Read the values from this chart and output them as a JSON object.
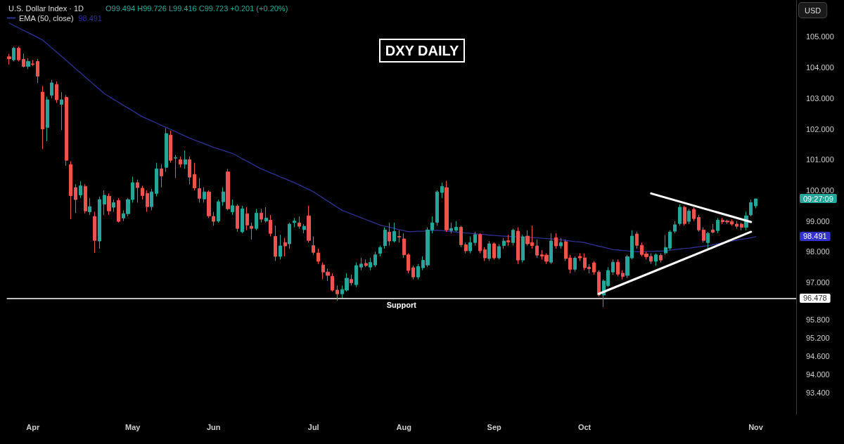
{
  "chart_data": {
    "type": "candlestick",
    "title": "DXY DAILY",
    "subtitle": "U.S. Dollar Index · 1D",
    "annotations": [
      "O99.494 H99.726 L99.416 C99.723 +0.201 (+0.20%)",
      "09:27:09",
      "USD",
      "98.491",
      "98.491",
      "96.478"
    ],
    "categories": [
      null,
      null,
      null,
      null,
      null,
      "Apr",
      null,
      null,
      null,
      null,
      null,
      null,
      null,
      null,
      null,
      null,
      null,
      null,
      null,
      null,
      null,
      null,
      null,
      null,
      null,
      null,
      "May",
      null,
      null,
      null,
      null,
      null,
      null,
      null,
      null,
      null,
      null,
      null,
      null,
      null,
      null,
      null,
      null,
      "Jun",
      null,
      null,
      null,
      null,
      null,
      null,
      null,
      null,
      null,
      null,
      null,
      null,
      null,
      null,
      null,
      null,
      null,
      null,
      null,
      null,
      "Jul",
      null,
      null,
      null,
      null,
      null,
      null,
      null,
      null,
      null,
      null,
      null,
      null,
      null,
      null,
      null,
      null,
      null,
      null,
      "Aug",
      null,
      null,
      null,
      null,
      null,
      null,
      null,
      null,
      null,
      null,
      null,
      null,
      null,
      null,
      null,
      null,
      null,
      null,
      "Sep",
      null,
      null,
      null,
      null,
      null,
      null,
      null,
      null,
      null,
      null,
      null,
      null,
      null,
      null,
      null,
      null,
      null,
      null,
      "Oct",
      null,
      null,
      null,
      null,
      null,
      null,
      null,
      null,
      null,
      null,
      null,
      null,
      null,
      null,
      null,
      null,
      null,
      null,
      null,
      null,
      null,
      null,
      null,
      null,
      null,
      null,
      null,
      null,
      null,
      null,
      null,
      null,
      null,
      null,
      null,
      "Nov",
      null,
      null,
      null,
      null,
      null,
      null,
      null,
      null
    ],
    "ohlc": [
      [
        104.35,
        104.45,
        104.1,
        104.29
      ],
      [
        104.25,
        104.68,
        104.2,
        104.63
      ],
      [
        104.63,
        104.68,
        104.2,
        104.25
      ],
      [
        104.27,
        104.45,
        104.0,
        104.04
      ],
      [
        104.04,
        104.3,
        103.95,
        104.2
      ],
      [
        104.12,
        104.25,
        104.05,
        104.1
      ],
      [
        104.2,
        104.28,
        103.5,
        103.72
      ],
      [
        103.2,
        103.4,
        101.34,
        102.0
      ],
      [
        102.05,
        103.05,
        101.6,
        102.95
      ],
      [
        103.1,
        103.6,
        103.0,
        103.5
      ],
      [
        103.45,
        103.55,
        102.85,
        102.95
      ],
      [
        102.8,
        103.2,
        101.96,
        102.95
      ],
      [
        103.03,
        103.1,
        100.8,
        100.98
      ],
      [
        100.84,
        100.95,
        99.06,
        99.83
      ],
      [
        100.09,
        100.2,
        99.26,
        99.7
      ],
      [
        99.85,
        100.3,
        99.75,
        100.15
      ],
      [
        100.13,
        100.2,
        99.25,
        99.33
      ],
      [
        99.3,
        99.75,
        99.2,
        99.47
      ],
      [
        99.15,
        99.3,
        97.96,
        98.37
      ],
      [
        98.35,
        99.8,
        98.1,
        99.7
      ],
      [
        99.55,
        100.0,
        99.2,
        99.84
      ],
      [
        99.81,
        99.9,
        99.2,
        99.33
      ],
      [
        99.45,
        99.7,
        99.3,
        99.6
      ],
      [
        99.67,
        99.75,
        98.95,
        98.99
      ],
      [
        99.1,
        99.35,
        99.0,
        99.24
      ],
      [
        99.24,
        99.75,
        99.15,
        99.7
      ],
      [
        99.7,
        100.45,
        99.6,
        100.25
      ],
      [
        100.25,
        100.35,
        99.6,
        100.09
      ],
      [
        100.07,
        100.15,
        99.7,
        99.83
      ],
      [
        99.9,
        100.0,
        99.3,
        99.47
      ],
      [
        99.47,
        100.05,
        99.35,
        99.95
      ],
      [
        99.9,
        100.9,
        99.8,
        100.7
      ],
      [
        100.7,
        100.85,
        100.1,
        100.47
      ],
      [
        100.75,
        102.03,
        100.6,
        101.85
      ],
      [
        101.8,
        101.95,
        100.9,
        100.98
      ],
      [
        101.05,
        101.15,
        100.4,
        101.07
      ],
      [
        101.0,
        101.1,
        100.75,
        100.85
      ],
      [
        100.85,
        101.3,
        100.7,
        101.0
      ],
      [
        101.0,
        101.1,
        100.2,
        100.43
      ],
      [
        100.52,
        100.9,
        100.0,
        100.08
      ],
      [
        100.06,
        100.4,
        99.6,
        99.74
      ],
      [
        99.72,
        100.1,
        99.6,
        99.95
      ],
      [
        99.95,
        100.0,
        99.1,
        99.17
      ],
      [
        99.15,
        99.3,
        98.85,
        98.99
      ],
      [
        99.0,
        99.7,
        98.95,
        99.63
      ],
      [
        99.63,
        100.1,
        99.5,
        99.95
      ],
      [
        100.6,
        100.7,
        99.35,
        99.4
      ],
      [
        99.3,
        99.7,
        99.2,
        99.5
      ],
      [
        99.49,
        99.55,
        98.65,
        98.76
      ],
      [
        98.65,
        99.5,
        98.6,
        99.4
      ],
      [
        99.24,
        99.45,
        98.7,
        98.87
      ],
      [
        98.83,
        98.95,
        98.4,
        98.76
      ],
      [
        98.76,
        99.4,
        98.7,
        99.26
      ],
      [
        99.26,
        99.4,
        98.95,
        99.06
      ],
      [
        99.0,
        99.45,
        98.95,
        99.1
      ],
      [
        99.03,
        99.2,
        98.5,
        98.6
      ],
      [
        98.5,
        98.85,
        97.7,
        97.85
      ],
      [
        97.85,
        98.55,
        97.75,
        98.19
      ],
      [
        98.3,
        98.45,
        97.85,
        98.19
      ],
      [
        98.26,
        98.95,
        98.1,
        98.9
      ],
      [
        98.95,
        99.1,
        98.8,
        99.0
      ],
      [
        98.94,
        99.15,
        98.75,
        98.83
      ],
      [
        98.72,
        98.9,
        98.6,
        98.83
      ],
      [
        99.17,
        99.5,
        98.3,
        98.37
      ],
      [
        98.2,
        98.5,
        97.9,
        97.98
      ],
      [
        97.96,
        98.1,
        97.6,
        97.69
      ],
      [
        97.57,
        97.65,
        97.1,
        97.34
      ],
      [
        97.34,
        97.45,
        97.05,
        97.23
      ],
      [
        97.2,
        97.3,
        96.7,
        96.75
      ],
      [
        96.75,
        96.9,
        96.4,
        96.63
      ],
      [
        96.63,
        96.9,
        96.5,
        96.77
      ],
      [
        96.75,
        97.3,
        96.7,
        97.14
      ],
      [
        97.1,
        97.25,
        96.9,
        96.99
      ],
      [
        96.93,
        97.65,
        96.85,
        97.55
      ],
      [
        97.5,
        97.8,
        97.4,
        97.6
      ],
      [
        97.62,
        97.75,
        97.5,
        97.55
      ],
      [
        97.5,
        97.8,
        97.4,
        97.65
      ],
      [
        97.57,
        98.0,
        97.5,
        97.9
      ],
      [
        97.95,
        98.2,
        97.85,
        98.14
      ],
      [
        98.2,
        98.8,
        98.1,
        98.71
      ],
      [
        98.64,
        98.95,
        98.2,
        98.35
      ],
      [
        98.35,
        98.95,
        98.3,
        98.66
      ],
      [
        98.5,
        98.7,
        98.3,
        98.48
      ],
      [
        98.42,
        98.6,
        97.8,
        97.9
      ],
      [
        97.9,
        97.95,
        97.3,
        97.39
      ],
      [
        97.48,
        97.55,
        97.1,
        97.18
      ],
      [
        97.18,
        97.6,
        97.1,
        97.52
      ],
      [
        97.48,
        97.85,
        97.4,
        97.72
      ],
      [
        97.57,
        98.8,
        97.5,
        98.71
      ],
      [
        98.71,
        99.15,
        98.6,
        98.94
      ],
      [
        98.96,
        100.0,
        98.85,
        99.95
      ],
      [
        99.93,
        100.25,
        99.75,
        100.13
      ],
      [
        100.09,
        100.31,
        98.65,
        98.71
      ],
      [
        98.69,
        98.95,
        98.6,
        98.76
      ],
      [
        98.7,
        99.0,
        98.65,
        98.8
      ],
      [
        98.8,
        98.85,
        98.15,
        98.23
      ],
      [
        98.23,
        98.3,
        97.95,
        98.03
      ],
      [
        98.03,
        98.5,
        97.95,
        98.3
      ],
      [
        98.3,
        98.65,
        98.2,
        98.56
      ],
      [
        98.56,
        98.6,
        97.95,
        98.03
      ],
      [
        98.07,
        98.15,
        97.7,
        97.8
      ],
      [
        97.78,
        98.35,
        97.7,
        98.26
      ],
      [
        98.26,
        98.3,
        97.75,
        97.8
      ],
      [
        97.8,
        98.25,
        97.75,
        98.17
      ],
      [
        98.2,
        98.45,
        98.1,
        98.35
      ],
      [
        98.36,
        98.55,
        98.2,
        98.32
      ],
      [
        98.3,
        98.75,
        98.2,
        98.7
      ],
      [
        98.67,
        98.8,
        97.6,
        97.73
      ],
      [
        97.73,
        98.55,
        97.65,
        98.49
      ],
      [
        98.51,
        98.7,
        98.2,
        98.26
      ],
      [
        98.3,
        98.85,
        98.1,
        98.2
      ],
      [
        98.19,
        98.4,
        97.8,
        97.89
      ],
      [
        97.9,
        98.05,
        97.75,
        97.86
      ],
      [
        97.89,
        97.95,
        97.6,
        97.69
      ],
      [
        97.66,
        98.6,
        97.6,
        98.35
      ],
      [
        98.46,
        98.6,
        98.1,
        98.19
      ],
      [
        98.19,
        98.45,
        98.1,
        98.3
      ],
      [
        98.33,
        98.4,
        97.7,
        97.78
      ],
      [
        97.8,
        97.9,
        97.3,
        97.43
      ],
      [
        97.43,
        97.85,
        97.35,
        97.79
      ],
      [
        97.85,
        97.95,
        97.7,
        97.8
      ],
      [
        97.8,
        97.95,
        97.4,
        97.48
      ],
      [
        97.5,
        97.6,
        97.3,
        97.45
      ],
      [
        97.64,
        97.7,
        97.25,
        97.34
      ],
      [
        97.34,
        97.4,
        96.54,
        96.59
      ],
      [
        96.59,
        97.1,
        96.2,
        97.05
      ],
      [
        96.9,
        97.5,
        96.85,
        97.39
      ],
      [
        97.34,
        97.75,
        97.25,
        97.66
      ],
      [
        97.66,
        97.75,
        97.2,
        97.27
      ],
      [
        97.3,
        97.4,
        97.1,
        97.2
      ],
      [
        97.23,
        97.9,
        97.15,
        97.84
      ],
      [
        97.8,
        98.7,
        97.75,
        98.51
      ],
      [
        98.58,
        98.65,
        98.1,
        98.21
      ],
      [
        98.21,
        98.3,
        97.85,
        97.91
      ],
      [
        97.93,
        98.0,
        97.75,
        97.84
      ],
      [
        97.85,
        97.95,
        97.6,
        97.69
      ],
      [
        97.69,
        97.95,
        97.55,
        97.9
      ],
      [
        97.88,
        97.95,
        97.65,
        97.73
      ],
      [
        97.96,
        98.55,
        97.9,
        98.14
      ],
      [
        98.12,
        98.7,
        98.05,
        98.64
      ],
      [
        98.67,
        99.0,
        98.6,
        98.88
      ],
      [
        98.92,
        99.55,
        98.85,
        99.45
      ],
      [
        99.45,
        99.5,
        98.85,
        98.92
      ],
      [
        98.99,
        99.4,
        98.9,
        99.33
      ],
      [
        99.38,
        99.45,
        99.0,
        99.08
      ],
      [
        99.12,
        99.2,
        98.65,
        98.71
      ],
      [
        98.71,
        98.8,
        98.3,
        98.37
      ],
      [
        98.3,
        98.65,
        98.07,
        98.6
      ],
      [
        98.71,
        98.9,
        98.6,
        98.64
      ],
      [
        98.69,
        99.1,
        98.6,
        99.03
      ],
      [
        99.03,
        99.1,
        98.9,
        98.98
      ],
      [
        99.0,
        99.05,
        98.9,
        98.97
      ],
      [
        98.98,
        99.05,
        98.85,
        98.9
      ],
      [
        98.9,
        99.0,
        98.75,
        98.83
      ],
      [
        98.9,
        98.95,
        98.7,
        98.8
      ],
      [
        98.8,
        99.3,
        98.7,
        99.17
      ],
      [
        99.2,
        99.7,
        99.15,
        99.6
      ],
      [
        99.494,
        99.726,
        99.416,
        99.723
      ],
      null,
      null,
      null,
      null,
      null,
      null,
      null,
      null
    ],
    "colors": [
      "#ef5350",
      "#26a69a",
      "#ef5350",
      "#ef5350",
      "#26a69a",
      "#ef5350",
      "#ef5350",
      "#ef5350",
      "#26a69a",
      "#26a69a",
      "#ef5350",
      "#26a69a",
      "#ef5350",
      "#ef5350",
      "#ef5350",
      "#26a69a",
      "#ef5350",
      "#26a69a",
      "#ef5350",
      "#26a69a",
      "#26a69a",
      "#ef5350",
      "#26a69a",
      "#ef5350",
      "#26a69a",
      "#26a69a",
      "#26a69a",
      "#ef5350",
      "#ef5350",
      "#ef5350",
      "#26a69a",
      "#26a69a",
      "#ef5350",
      "#26a69a",
      "#ef5350",
      "#26a69a",
      "#ef5350",
      "#26a69a",
      "#ef5350",
      "#ef5350",
      "#ef5350",
      "#26a69a",
      "#ef5350",
      "#ef5350",
      "#26a69a",
      "#26a69a",
      "#ef5350",
      "#26a69a",
      "#ef5350",
      "#26a69a",
      "#ef5350",
      "#ef5350",
      "#26a69a",
      "#ef5350",
      "#26a69a",
      "#ef5350",
      "#ef5350",
      "#26a69a",
      "#ef5350",
      "#26a69a",
      "#26a69a",
      "#ef5350",
      "#26a69a",
      "#ef5350",
      "#ef5350",
      "#ef5350",
      "#ef5350",
      "#ef5350",
      "#ef5350",
      "#ef5350",
      "#26a69a",
      "#26a69a",
      "#ef5350",
      "#26a69a",
      "#26a69a",
      "#ef5350",
      "#26a69a",
      "#26a69a",
      "#26a69a",
      "#26a69a",
      "#ef5350",
      "#26a69a",
      "#ef5350",
      "#ef5350",
      "#ef5350",
      "#ef5350",
      "#26a69a",
      "#26a69a",
      "#26a69a",
      "#26a69a",
      "#26a69a",
      "#26a69a",
      "#ef5350",
      "#26a69a",
      "#26a69a",
      "#ef5350",
      "#ef5350",
      "#26a69a",
      "#26a69a",
      "#ef5350",
      "#ef5350",
      "#26a69a",
      "#ef5350",
      "#26a69a",
      "#26a69a",
      "#ef5350",
      "#26a69a",
      "#ef5350",
      "#26a69a",
      "#ef5350",
      "#ef5350",
      "#ef5350",
      "#ef5350",
      "#ef5350",
      "#26a69a",
      "#ef5350",
      "#26a69a",
      "#ef5350",
      "#ef5350",
      "#26a69a",
      "#ef5350",
      "#ef5350",
      "#ef5350",
      "#ef5350",
      "#ef5350",
      "#26a69a",
      "#26a69a",
      "#26a69a",
      "#ef5350",
      "#ef5350",
      "#26a69a",
      "#26a69a",
      "#ef5350",
      "#ef5350",
      "#ef5350",
      "#ef5350",
      "#26a69a",
      "#ef5350",
      "#26a69a",
      "#26a69a",
      "#26a69a",
      "#26a69a",
      "#ef5350",
      "#26a69a",
      "#ef5350",
      "#ef5350",
      "#ef5350",
      "#26a69a",
      "#ef5350",
      "#26a69a",
      "#ef5350",
      "#ef5350",
      "#ef5350",
      "#ef5350",
      "#ef5350",
      "#26a69a",
      "#26a69a",
      "#26a69a",
      null,
      null,
      null,
      null,
      null,
      null,
      null,
      null
    ],
    "series": [
      {
        "name": "EMA (50, close)",
        "type": "line",
        "color": "#2e3192",
        "values": [
          105.45,
          105.37,
          105.29,
          105.21,
          105.14,
          105.06,
          104.98,
          104.9,
          104.77,
          104.63,
          104.5,
          104.37,
          104.23,
          104.1,
          103.96,
          103.83,
          103.69,
          103.56,
          103.42,
          103.29,
          103.15,
          103.06,
          102.96,
          102.87,
          102.77,
          102.68,
          102.59,
          102.49,
          102.4,
          102.33,
          102.26,
          102.19,
          102.12,
          102.05,
          101.98,
          101.91,
          101.84,
          101.77,
          101.7,
          101.64,
          101.58,
          101.52,
          101.46,
          101.4,
          101.35,
          101.3,
          101.25,
          101.2,
          101.12,
          101.03,
          100.95,
          100.87,
          100.78,
          100.7,
          100.64,
          100.57,
          100.51,
          100.44,
          100.38,
          100.31,
          100.25,
          100.18,
          100.1,
          100.03,
          99.95,
          99.85,
          99.75,
          99.65,
          99.55,
          99.45,
          99.35,
          99.29,
          99.23,
          99.17,
          99.11,
          99.05,
          98.99,
          98.93,
          98.87,
          98.83,
          98.8,
          98.76,
          98.72,
          98.69,
          98.65,
          98.66,
          98.67,
          98.67,
          98.68,
          98.69,
          98.7,
          98.69,
          98.67,
          98.66,
          98.64,
          98.63,
          98.61,
          98.6,
          98.59,
          98.57,
          98.56,
          98.54,
          98.53,
          98.52,
          98.51,
          98.5,
          98.49,
          98.48,
          98.47,
          98.47,
          98.46,
          98.45,
          98.44,
          98.43,
          98.42,
          98.4,
          98.39,
          98.37,
          98.35,
          98.33,
          98.32,
          98.3,
          98.26,
          98.22,
          98.18,
          98.15,
          98.11,
          98.07,
          98.06,
          98.04,
          98.03,
          98.01,
          98.0,
          98.0,
          98.01,
          98.01,
          98.02,
          98.02,
          98.03,
          98.05,
          98.07,
          98.09,
          98.11,
          98.12,
          98.14,
          98.16,
          98.18,
          98.2,
          98.23,
          98.26,
          98.29,
          98.32,
          98.35,
          98.38,
          98.41,
          98.43,
          98.46,
          98.49,
          null,
          null,
          null,
          null,
          null,
          null,
          null,
          null
        ]
      },
      {
        "type": "line",
        "color": "#ffffff",
        "values": [
          null,
          null,
          null,
          null,
          null,
          null,
          null,
          null,
          null,
          null,
          null,
          null,
          null,
          null,
          null,
          null,
          null,
          null,
          null,
          null,
          null,
          null,
          null,
          null,
          null,
          null,
          null,
          null,
          null,
          null,
          null,
          null,
          null,
          null,
          null,
          null,
          null,
          null,
          null,
          null,
          null,
          null,
          null,
          null,
          null,
          null,
          null,
          null,
          null,
          null,
          null,
          null,
          null,
          null,
          null,
          null,
          null,
          null,
          null,
          null,
          null,
          null,
          null,
          null,
          null,
          null,
          null,
          null,
          null,
          null,
          null,
          null,
          null,
          null,
          null,
          null,
          null,
          null,
          null,
          null,
          null,
          null,
          null,
          null,
          null,
          null,
          null,
          null,
          null,
          null,
          null,
          null,
          null,
          null,
          null,
          null,
          null,
          null,
          null,
          null,
          null,
          null,
          null,
          null,
          null,
          null,
          null,
          null,
          null,
          null,
          null,
          null,
          null,
          null,
          null,
          null,
          null,
          null,
          null,
          null,
          null,
          null,
          null,
          null,
          96.63,
          null,
          null,
          null,
          null,
          null,
          null,
          null,
          null,
          null,
          null,
          null,
          null,
          null,
          null,
          null,
          null,
          null,
          null,
          null,
          null,
          null,
          null,
          null,
          null,
          null,
          null,
          null,
          null,
          null,
          null,
          null,
          98.65,
          null,
          null,
          null,
          null,
          null,
          null,
          null,
          null,
          null
        ]
      },
      {
        "type": "line",
        "color": "#ffffff",
        "values": [
          null,
          null,
          null,
          null,
          null,
          null,
          null,
          null,
          null,
          null,
          null,
          null,
          null,
          null,
          null,
          null,
          null,
          null,
          null,
          null,
          null,
          null,
          null,
          null,
          null,
          null,
          null,
          null,
          null,
          null,
          null,
          null,
          null,
          null,
          null,
          null,
          null,
          null,
          null,
          null,
          null,
          null,
          null,
          null,
          null,
          null,
          null,
          null,
          null,
          null,
          null,
          null,
          null,
          null,
          null,
          null,
          null,
          null,
          null,
          null,
          null,
          null,
          null,
          null,
          null,
          null,
          null,
          null,
          null,
          null,
          null,
          null,
          null,
          null,
          null,
          null,
          null,
          null,
          null,
          null,
          null,
          null,
          null,
          null,
          null,
          null,
          null,
          null,
          null,
          null,
          null,
          null,
          null,
          null,
          null,
          null,
          null,
          null,
          null,
          null,
          null,
          null,
          null,
          null,
          null,
          null,
          null,
          null,
          null,
          null,
          null,
          null,
          null,
          null,
          null,
          null,
          null,
          null,
          null,
          null,
          null,
          null,
          null,
          null,
          null,
          null,
          null,
          null,
          null,
          null,
          null,
          null,
          null,
          null,
          null,
          99.9,
          null,
          null,
          null,
          null,
          null,
          null,
          null,
          null,
          null,
          null,
          null,
          null,
          null,
          null,
          null,
          null,
          null,
          null,
          null,
          null,
          98.97,
          null,
          null,
          null,
          null,
          null,
          null,
          null,
          null,
          null
        ]
      }
    ],
    "ylim": [
      92.7,
      106.2
    ],
    "yticks": [
      {
        "value": 105,
        "label": "105.000"
      },
      {
        "value": 104,
        "label": "104.000"
      },
      {
        "value": 103,
        "label": "103.000"
      },
      {
        "value": 102,
        "label": "102.000"
      },
      {
        "value": 101,
        "label": "101.000"
      },
      {
        "value": 100,
        "label": "100.000"
      },
      {
        "value": 99,
        "label": "99.000"
      },
      {
        "value": 98,
        "label": "98.000"
      },
      {
        "value": 97,
        "label": "97.000"
      },
      {
        "value": 95.8,
        "label": "95.800"
      },
      {
        "value": 95.2,
        "label": "95.200"
      },
      {
        "value": 94.6,
        "label": "94.600"
      },
      {
        "value": 94,
        "label": "94.000"
      },
      {
        "value": 93.4,
        "label": "93.400"
      }
    ],
    "ref_lines": [
      {
        "axis": "y",
        "value": 96.478,
        "label": "Support",
        "color": "#ffffff"
      }
    ],
    "legend": "top left",
    "marker": "none",
    "line_style": "solid"
  }
}
